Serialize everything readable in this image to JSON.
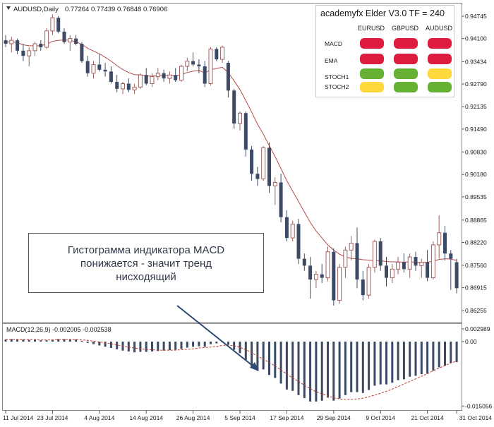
{
  "chart_data": {
    "type": "candlestick",
    "symbol_header": "AUDUSD,Daily",
    "ohlc_header": "0.77264 0.77439 0.76848 0.76906",
    "ylim": [
      0.8595,
      0.9509
    ],
    "y_ticks": [
      "0.94745",
      "0.94100",
      "0.93434",
      "0.92790",
      "0.92135",
      "0.91490",
      "0.90830",
      "0.90180",
      "0.89535",
      "0.88865",
      "0.88220",
      "0.87560",
      "0.86915",
      "0.86255"
    ],
    "x_tick_labels": [
      "11 Jul 2014",
      "23 Jul 2014",
      "4 Aug 2014",
      "14 Aug 2014",
      "26 Aug 2014",
      "5 Sep 2014",
      "17 Sep 2014",
      "29 Sep 2014",
      "9 Oct 2014",
      "21 Oct 2014",
      "31 Oct 2014"
    ],
    "candles": [
      [
        0.9405,
        0.942,
        0.9385,
        0.9395
      ],
      [
        0.9395,
        0.9415,
        0.937,
        0.9405
      ],
      [
        0.9405,
        0.941,
        0.9365,
        0.9375
      ],
      [
        0.9375,
        0.9395,
        0.9345,
        0.936
      ],
      [
        0.936,
        0.9385,
        0.933,
        0.9375
      ],
      [
        0.9375,
        0.94,
        0.936,
        0.9395
      ],
      [
        0.9395,
        0.9405,
        0.9375,
        0.9385
      ],
      [
        0.9385,
        0.944,
        0.938,
        0.9432
      ],
      [
        0.9432,
        0.948,
        0.942,
        0.947
      ],
      [
        0.947,
        0.9475,
        0.9425,
        0.943
      ],
      [
        0.943,
        0.944,
        0.9395,
        0.94
      ],
      [
        0.94,
        0.942,
        0.9375,
        0.941
      ],
      [
        0.941,
        0.942,
        0.939,
        0.9395
      ],
      [
        0.9395,
        0.94,
        0.934,
        0.9345
      ],
      [
        0.9345,
        0.936,
        0.93,
        0.931
      ],
      [
        0.931,
        0.9345,
        0.9295,
        0.9335
      ],
      [
        0.9335,
        0.9365,
        0.9315,
        0.932
      ],
      [
        0.932,
        0.934,
        0.93,
        0.9315
      ],
      [
        0.9315,
        0.933,
        0.928,
        0.9285
      ],
      [
        0.9285,
        0.9305,
        0.9255,
        0.9265
      ],
      [
        0.9265,
        0.9285,
        0.925,
        0.928
      ],
      [
        0.928,
        0.9295,
        0.9255,
        0.9262
      ],
      [
        0.9262,
        0.928,
        0.925,
        0.927
      ],
      [
        0.927,
        0.931,
        0.9265,
        0.9305
      ],
      [
        0.9305,
        0.9325,
        0.9275,
        0.928
      ],
      [
        0.928,
        0.931,
        0.927,
        0.93
      ],
      [
        0.93,
        0.9325,
        0.929,
        0.931
      ],
      [
        0.931,
        0.932,
        0.9285,
        0.9295
      ],
      [
        0.9295,
        0.9315,
        0.928,
        0.9305
      ],
      [
        0.9305,
        0.9325,
        0.9285,
        0.929
      ],
      [
        0.929,
        0.9335,
        0.9285,
        0.933
      ],
      [
        0.933,
        0.9355,
        0.9315,
        0.9345
      ],
      [
        0.9345,
        0.937,
        0.933,
        0.9335
      ],
      [
        0.9335,
        0.935,
        0.931,
        0.933
      ],
      [
        0.933,
        0.9345,
        0.927,
        0.928
      ],
      [
        0.928,
        0.9385,
        0.9275,
        0.938
      ],
      [
        0.938,
        0.9385,
        0.9345,
        0.935
      ],
      [
        0.935,
        0.939,
        0.934,
        0.9385
      ],
      [
        0.934,
        0.9345,
        0.924,
        0.926
      ],
      [
        0.926,
        0.9265,
        0.915,
        0.9165
      ],
      [
        0.9165,
        0.92,
        0.9145,
        0.9195
      ],
      [
        0.9195,
        0.92,
        0.907,
        0.909
      ],
      [
        0.909,
        0.91,
        0.9,
        0.902
      ],
      [
        0.902,
        0.904,
        0.8985,
        0.9005
      ],
      [
        0.9005,
        0.91,
        0.9,
        0.9095
      ],
      [
        0.9095,
        0.911,
        0.8965,
        0.8985
      ],
      [
        0.8985,
        0.901,
        0.893,
        0.8995
      ],
      [
        0.8995,
        0.902,
        0.888,
        0.8895
      ],
      [
        0.8895,
        0.8915,
        0.8825,
        0.8835
      ],
      [
        0.8835,
        0.8885,
        0.8825,
        0.8875
      ],
      [
        0.8875,
        0.889,
        0.876,
        0.8775
      ],
      [
        0.8775,
        0.879,
        0.874,
        0.8755
      ],
      [
        0.8755,
        0.878,
        0.866,
        0.8715
      ],
      [
        0.8715,
        0.874,
        0.869,
        0.873
      ],
      [
        0.873,
        0.876,
        0.8705,
        0.872
      ],
      [
        0.872,
        0.881,
        0.871,
        0.8795
      ],
      [
        0.8795,
        0.8805,
        0.864,
        0.8655
      ],
      [
        0.8655,
        0.876,
        0.8645,
        0.875
      ],
      [
        0.875,
        0.881,
        0.872,
        0.88
      ],
      [
        0.88,
        0.884,
        0.877,
        0.882
      ],
      [
        0.882,
        0.8865,
        0.869,
        0.8715
      ],
      [
        0.8715,
        0.874,
        0.8655,
        0.867
      ],
      [
        0.867,
        0.876,
        0.866,
        0.875
      ],
      [
        0.875,
        0.883,
        0.8735,
        0.8825
      ],
      [
        0.8825,
        0.8835,
        0.874,
        0.8755
      ],
      [
        0.8755,
        0.878,
        0.8695,
        0.872
      ],
      [
        0.872,
        0.876,
        0.8705,
        0.8745
      ],
      [
        0.8745,
        0.878,
        0.873,
        0.8765
      ],
      [
        0.8765,
        0.879,
        0.8735,
        0.8745
      ],
      [
        0.8745,
        0.879,
        0.872,
        0.878
      ],
      [
        0.878,
        0.8795,
        0.874,
        0.8755
      ],
      [
        0.8755,
        0.8775,
        0.872,
        0.8765
      ],
      [
        0.8765,
        0.88,
        0.871,
        0.872
      ],
      [
        0.872,
        0.8825,
        0.8715,
        0.8815
      ],
      [
        0.8815,
        0.89,
        0.8775,
        0.885
      ],
      [
        0.885,
        0.887,
        0.877,
        0.879
      ],
      [
        0.879,
        0.88,
        0.8685,
        0.8775
      ],
      [
        0.8765,
        0.8775,
        0.8675,
        0.869
      ]
    ],
    "ema": [
      0.94,
      0.9401,
      0.9398,
      0.9392,
      0.9389,
      0.9389,
      0.9389,
      0.9394,
      0.9402,
      0.9405,
      0.9406,
      0.9405,
      0.9401,
      0.9393,
      0.9382,
      0.9374,
      0.9366,
      0.9356,
      0.9345,
      0.9332,
      0.9321,
      0.9312,
      0.9306,
      0.9305,
      0.9302,
      0.9302,
      0.9303,
      0.9303,
      0.9303,
      0.9303,
      0.9306,
      0.9312,
      0.9316,
      0.9318,
      0.9311,
      0.932,
      0.9324,
      0.9327,
      0.9312,
      0.9288,
      0.9263,
      0.9231,
      0.9198,
      0.9163,
      0.9134,
      0.9101,
      0.907,
      0.9035,
      0.9,
      0.897,
      0.894,
      0.891,
      0.888,
      0.8855,
      0.8835,
      0.8815,
      0.88,
      0.8788,
      0.878,
      0.8776,
      0.8775,
      0.8772,
      0.8771,
      0.877,
      0.8769,
      0.8767,
      0.8766,
      0.8766,
      0.8765,
      0.8766,
      0.8765,
      0.8764,
      0.8765,
      0.8768,
      0.8773,
      0.8775,
      0.8774,
      0.877
    ],
    "macd_indicator": {
      "label": "MACD(12,26,9) -0.002005 -0.002538",
      "ylim": [
        -0.0155,
        0.0033
      ],
      "y_ticks": [
        "0.002989",
        "0.00",
        "-0.015056"
      ],
      "histogram": [
        0.0005,
        0.0006,
        0.0006,
        0.0005,
        0.0004,
        0.0004,
        0.0003,
        0.0003,
        0.0005,
        0.0006,
        0.0006,
        0.0006,
        0.0005,
        0.0002,
        -0.0003,
        -0.0006,
        -0.0009,
        -0.0012,
        -0.0015,
        -0.0018,
        -0.0021,
        -0.0023,
        -0.0025,
        -0.0024,
        -0.0024,
        -0.0023,
        -0.0022,
        -0.0021,
        -0.002,
        -0.0019,
        -0.0017,
        -0.0014,
        -0.0012,
        -0.0011,
        -0.0012,
        -0.0006,
        -0.0004,
        -0.0001,
        -0.0007,
        -0.0019,
        -0.0027,
        -0.0043,
        -0.0058,
        -0.0068,
        -0.0065,
        -0.0078,
        -0.0085,
        -0.0098,
        -0.0112,
        -0.0115,
        -0.0125,
        -0.0132,
        -0.014,
        -0.014,
        -0.0138,
        -0.0131,
        -0.0138,
        -0.0133,
        -0.0125,
        -0.0118,
        -0.0118,
        -0.012,
        -0.0113,
        -0.0103,
        -0.01,
        -0.01,
        -0.0096,
        -0.009,
        -0.0088,
        -0.0082,
        -0.008,
        -0.0076,
        -0.0075,
        -0.0068,
        -0.006,
        -0.0056,
        -0.005,
        -0.0048
      ],
      "signal": [
        0.0005,
        0.0005,
        0.0005,
        0.0005,
        0.0005,
        0.0005,
        0.0004,
        0.0004,
        0.0004,
        0.0005,
        0.0005,
        0.0005,
        0.0005,
        0.0004,
        0.0003,
        0.0001,
        -0.0001,
        -0.0003,
        -0.0005,
        -0.0008,
        -0.001,
        -0.0013,
        -0.0015,
        -0.0017,
        -0.0018,
        -0.0019,
        -0.002,
        -0.002,
        -0.002,
        -0.002,
        -0.0019,
        -0.0018,
        -0.0017,
        -0.0015,
        -0.0014,
        -0.0013,
        -0.0011,
        -0.0009,
        -0.0008,
        -0.001,
        -0.0013,
        -0.0019,
        -0.0026,
        -0.0034,
        -0.0041,
        -0.0049,
        -0.0057,
        -0.0066,
        -0.0076,
        -0.0085,
        -0.0093,
        -0.0102,
        -0.011,
        -0.0117,
        -0.0122,
        -0.0127,
        -0.0131,
        -0.0134,
        -0.0135,
        -0.0135,
        -0.0134,
        -0.0132,
        -0.0129,
        -0.0125,
        -0.0121,
        -0.0116,
        -0.0111,
        -0.0105,
        -0.0099,
        -0.0093,
        -0.0087,
        -0.0081,
        -0.0075,
        -0.0068,
        -0.0062,
        -0.0056,
        -0.005,
        -0.0046
      ]
    }
  },
  "colors": {
    "bear_candle": "#3d4a66",
    "bull_candle": "#ffffff",
    "bull_outline": "#a06060",
    "ema_line": "#b54a4a",
    "histogram": "#3d4a66",
    "signal_line": "#c0392b",
    "arrow": "#2f4a73",
    "red": "#dd1c3f",
    "green": "#66b134",
    "yellow": "#ffd83c"
  },
  "elder_panel": {
    "title": "academyfx Elder V3.0 TF = 240",
    "columns": [
      "EURUSD",
      "GBPUSD",
      "AUDUSD"
    ],
    "rows": [
      {
        "label": "MACD",
        "signals": [
          "red",
          "red",
          "red"
        ]
      },
      {
        "label": "EMA",
        "signals": [
          "red",
          "red",
          "red"
        ]
      },
      {
        "label": "STOCH1",
        "signals": [
          "green",
          "green",
          "yellow"
        ]
      },
      {
        "label": "STOCH2",
        "signals": [
          "yellow",
          "green",
          "green"
        ]
      }
    ]
  },
  "annotation": {
    "line1": "Гистограмма индикатора MACD",
    "line2": "понижается - значит тренд",
    "line3": "нисходящий"
  }
}
